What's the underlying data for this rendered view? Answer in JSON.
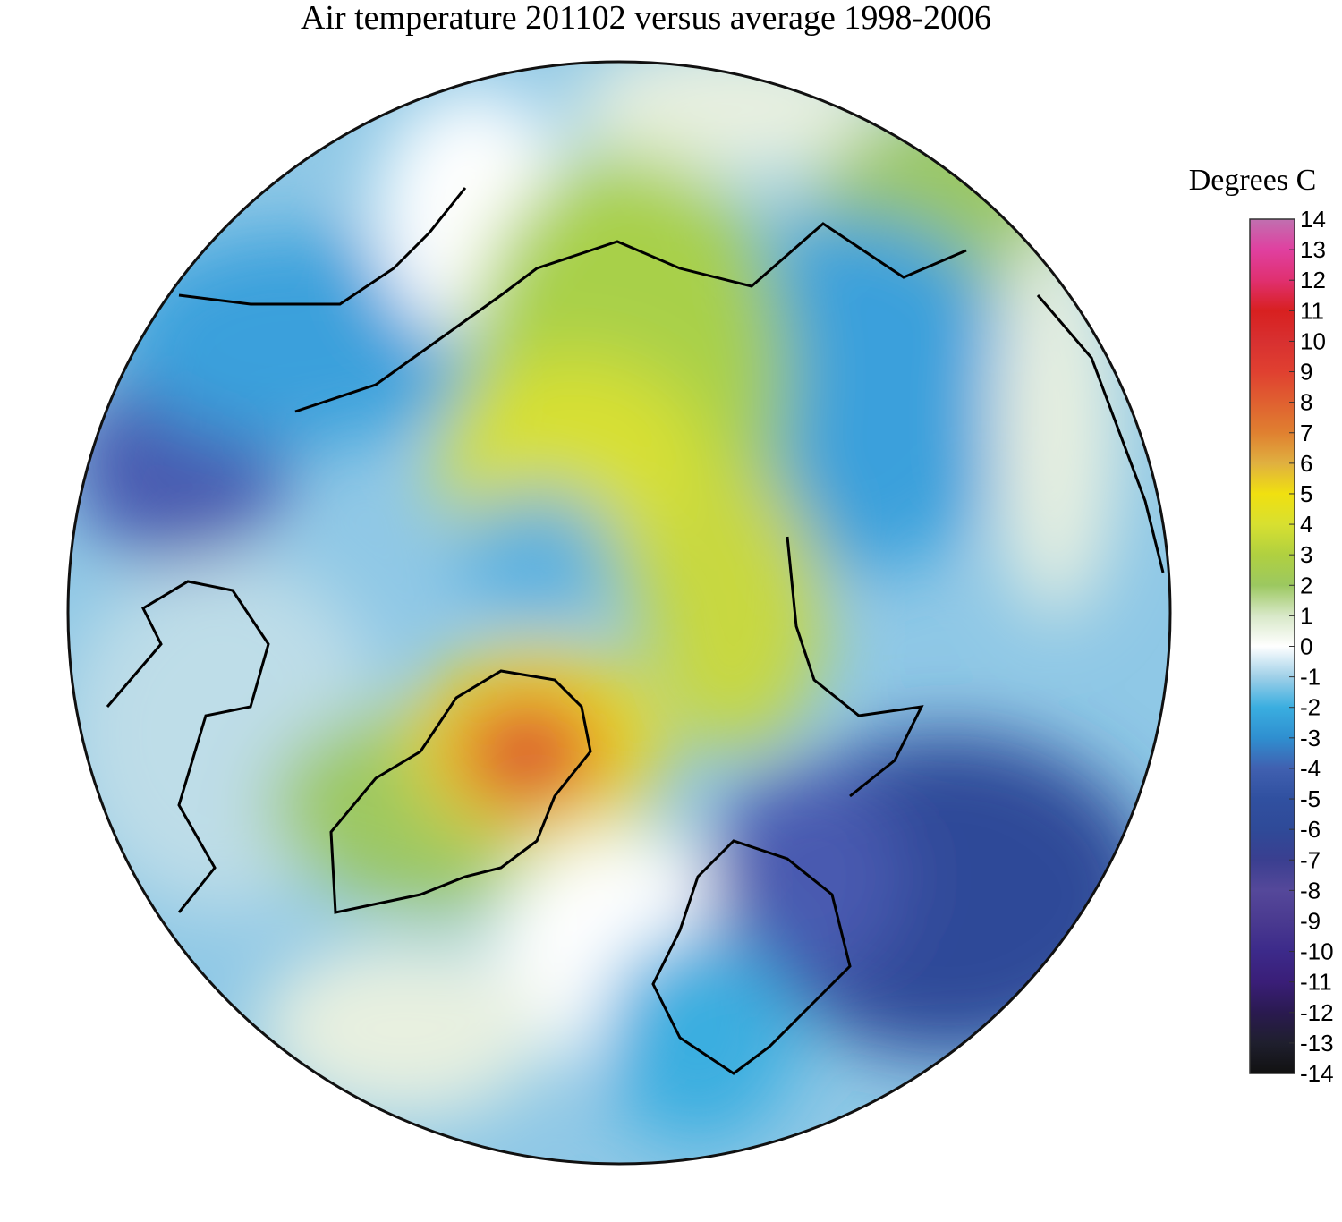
{
  "title": "Air temperature 201102 versus average 1998-2006",
  "colorbar": {
    "label": "Degrees C",
    "range": [
      -14,
      14
    ],
    "ticks": [
      -14,
      -13,
      -12,
      -11,
      -10,
      -9,
      -8,
      -7,
      -6,
      -5,
      -4,
      -3,
      -2,
      -1,
      0,
      1,
      2,
      3,
      4,
      5,
      6,
      7,
      8,
      9,
      10,
      11,
      12,
      13,
      14
    ],
    "colors": [
      "#111111",
      "#1f1f2e",
      "#2a1a50",
      "#3a1e78",
      "#3c2a8a",
      "#4a3a90",
      "#55489a",
      "#3a3f90",
      "#2f4a98",
      "#3050a0",
      "#4060b0",
      "#2f8fd0",
      "#3aaee0",
      "#9fd0e8",
      "#ffffff",
      "#d8e8c8",
      "#9cc860",
      "#b0d040",
      "#d8e030",
      "#f0e010",
      "#e0b040",
      "#e08030",
      "#e06030",
      "#e04030",
      "#d83030",
      "#d82020",
      "#e03070",
      "#e040a0",
      "#c070b0"
    ]
  }
}
